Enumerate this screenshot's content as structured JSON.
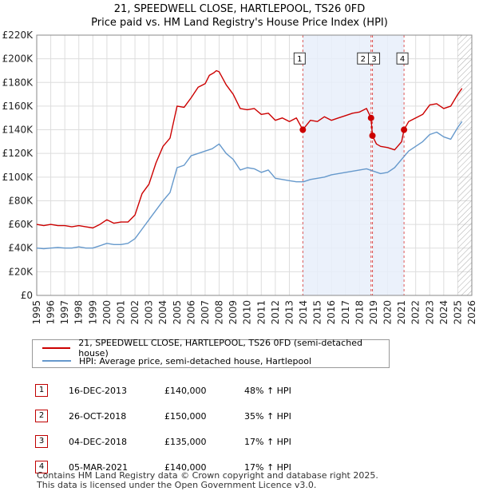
{
  "header": {
    "title": "21, SPEEDWELL CLOSE, HARTLEPOOL, TS26 0FD",
    "subtitle": "Price paid vs. HM Land Registry's House Price Index (HPI)"
  },
  "legend": {
    "items": [
      {
        "label": "21, SPEEDWELL CLOSE, HARTLEPOOL, TS26 0FD (semi-detached house)",
        "color": "#cc0000"
      },
      {
        "label": "HPI: Average price, semi-detached house, Hartlepool",
        "color": "#6699cc"
      }
    ]
  },
  "transactions": [
    {
      "num": "1",
      "date": "16-DEC-2013",
      "price": "£140,000",
      "hpi": "48% ↑ HPI"
    },
    {
      "num": "2",
      "date": "26-OCT-2018",
      "price": "£150,000",
      "hpi": "35% ↑ HPI"
    },
    {
      "num": "3",
      "date": "04-DEC-2018",
      "price": "£135,000",
      "hpi": "17% ↑ HPI"
    },
    {
      "num": "4",
      "date": "05-MAR-2021",
      "price": "£140,000",
      "hpi": "17% ↑ HPI"
    }
  ],
  "footer": {
    "line1": "Contains HM Land Registry data © Crown copyright and database right 2025.",
    "line2": "This data is licensed under the Open Government Licence v3.0."
  },
  "chart_data": {
    "type": "line",
    "title": "21, SPEEDWELL CLOSE, HARTLEPOOL, TS26 0FD",
    "subtitle": "Price paid vs. HM Land Registry's House Price Index (HPI)",
    "xlabel": "",
    "ylabel": "",
    "xlim": [
      1995,
      2026
    ],
    "ylim": [
      0,
      220000
    ],
    "x_ticks": [
      "1995",
      "1996",
      "1997",
      "1998",
      "1999",
      "2000",
      "2001",
      "2002",
      "2003",
      "2004",
      "2005",
      "2006",
      "2007",
      "2008",
      "2009",
      "2010",
      "2011",
      "2012",
      "2013",
      "2014",
      "2015",
      "2016",
      "2017",
      "2018",
      "2019",
      "2020",
      "2021",
      "2022",
      "2023",
      "2024",
      "2025",
      "2026"
    ],
    "y_ticks": [
      {
        "value": 0,
        "label": "£0"
      },
      {
        "value": 20000,
        "label": "£20K"
      },
      {
        "value": 40000,
        "label": "£40K"
      },
      {
        "value": 60000,
        "label": "£60K"
      },
      {
        "value": 80000,
        "label": "£80K"
      },
      {
        "value": 100000,
        "label": "£100K"
      },
      {
        "value": 120000,
        "label": "£120K"
      },
      {
        "value": 140000,
        "label": "£140K"
      },
      {
        "value": 160000,
        "label": "£160K"
      },
      {
        "value": 180000,
        "label": "£180K"
      },
      {
        "value": 200000,
        "label": "£200K"
      },
      {
        "value": 220000,
        "label": "£220K"
      }
    ],
    "grid": true,
    "series": [
      {
        "name": "21, SPEEDWELL CLOSE, HARTLEPOOL, TS26 0FD (semi-detached house)",
        "color": "#cc0000",
        "x": [
          1995.0,
          1995.5,
          1996.0,
          1996.5,
          1997.0,
          1997.5,
          1998.0,
          1998.5,
          1999.0,
          1999.5,
          2000.0,
          2000.5,
          2001.0,
          2001.5,
          2002.0,
          2002.5,
          2003.0,
          2003.5,
          2004.0,
          2004.5,
          2005.0,
          2005.5,
          2006.0,
          2006.5,
          2007.0,
          2007.3,
          2007.6,
          2007.8,
          2008.0,
          2008.5,
          2009.0,
          2009.5,
          2010.0,
          2010.5,
          2011.0,
          2011.5,
          2012.0,
          2012.5,
          2013.0,
          2013.5,
          2013.96,
          2014.5,
          2015.0,
          2015.5,
          2016.0,
          2016.5,
          2017.0,
          2017.5,
          2018.0,
          2018.5,
          2018.82,
          2018.92,
          2019.2,
          2019.5,
          2020.0,
          2020.5,
          2021.0,
          2021.17,
          2021.5,
          2022.0,
          2022.5,
          2023.0,
          2023.5,
          2024.0,
          2024.5,
          2025.0,
          2025.3
        ],
        "values": [
          60000,
          59000,
          60000,
          59000,
          59000,
          58000,
          59000,
          58000,
          57000,
          60000,
          64000,
          61000,
          62000,
          62000,
          68000,
          86000,
          94000,
          112000,
          126000,
          133000,
          160000,
          159000,
          167000,
          176000,
          179000,
          186000,
          188000,
          190000,
          189000,
          178000,
          170000,
          158000,
          157000,
          158000,
          153000,
          154000,
          148000,
          150000,
          147000,
          150000,
          140000,
          148000,
          147000,
          151000,
          148000,
          150000,
          152000,
          154000,
          155000,
          158000,
          150000,
          135000,
          128000,
          126000,
          125000,
          123000,
          130000,
          140000,
          147000,
          150000,
          153000,
          161000,
          162000,
          158000,
          160000,
          170000,
          175000
        ]
      },
      {
        "name": "HPI: Average price, semi-detached house, Hartlepool",
        "color": "#6699cc",
        "x": [
          1995.0,
          1995.5,
          1996.0,
          1996.5,
          1997.0,
          1997.5,
          1998.0,
          1998.5,
          1999.0,
          1999.5,
          2000.0,
          2000.5,
          2001.0,
          2001.5,
          2002.0,
          2002.5,
          2003.0,
          2003.5,
          2004.0,
          2004.5,
          2005.0,
          2005.5,
          2006.0,
          2006.5,
          2007.0,
          2007.5,
          2008.0,
          2008.5,
          2009.0,
          2009.5,
          2010.0,
          2010.5,
          2011.0,
          2011.5,
          2012.0,
          2012.5,
          2013.0,
          2013.5,
          2014.0,
          2014.5,
          2015.0,
          2015.5,
          2016.0,
          2016.5,
          2017.0,
          2017.5,
          2018.0,
          2018.5,
          2019.0,
          2019.5,
          2020.0,
          2020.5,
          2021.0,
          2021.5,
          2022.0,
          2022.5,
          2023.0,
          2023.5,
          2024.0,
          2024.5,
          2025.0,
          2025.3
        ],
        "values": [
          40000,
          39500,
          40000,
          40500,
          40000,
          40000,
          41000,
          40000,
          40000,
          42000,
          44000,
          43000,
          43000,
          44000,
          48000,
          56000,
          64000,
          72000,
          80000,
          87000,
          108000,
          110000,
          118000,
          120000,
          122000,
          124000,
          128000,
          120000,
          115000,
          106000,
          108000,
          107000,
          104000,
          106000,
          99000,
          98000,
          97000,
          96000,
          96000,
          98000,
          99000,
          100000,
          102000,
          103000,
          104000,
          105000,
          106000,
          107000,
          105000,
          103000,
          104000,
          108000,
          115000,
          122000,
          126000,
          130000,
          136000,
          138000,
          134000,
          132000,
          142000,
          147000
        ]
      }
    ],
    "annotations": [
      {
        "label": "1",
        "x": 2013.96,
        "y": 140000
      },
      {
        "label": "2",
        "x": 2018.82,
        "y": 150000
      },
      {
        "label": "3",
        "x": 2018.92,
        "y": 135000
      },
      {
        "label": "4",
        "x": 2021.17,
        "y": 140000
      }
    ],
    "shaded_spans": [
      [
        2013.96,
        2018.82
      ],
      [
        2018.92,
        2021.17
      ]
    ],
    "hatched_span": [
      2025.0,
      2026
    ]
  }
}
